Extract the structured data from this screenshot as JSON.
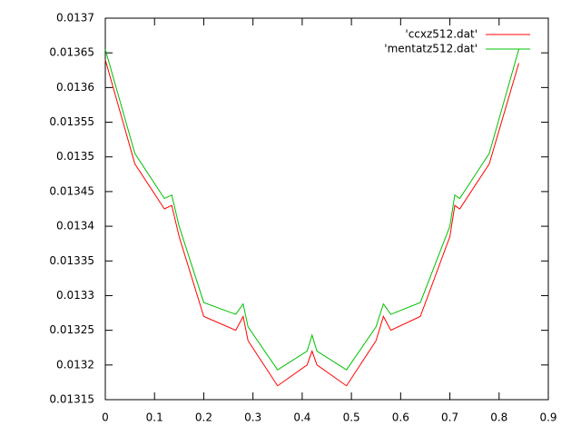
{
  "chart_data": {
    "type": "line",
    "x": [
      0,
      0.06,
      0.12,
      0.135,
      0.15,
      0.2,
      0.265,
      0.28,
      0.29,
      0.35,
      0.41,
      0.42,
      0.43,
      0.49,
      0.55,
      0.565,
      0.58,
      0.64,
      0.7,
      0.71,
      0.72,
      0.78,
      0.84
    ],
    "series": [
      {
        "name": "'ccxz512.dat'",
        "color": "#ff0000",
        "values": [
          0.01364,
          0.01349,
          0.013425,
          0.01343,
          0.013385,
          0.01327,
          0.01325,
          0.01327,
          0.013235,
          0.01317,
          0.0132,
          0.01322,
          0.0132,
          0.01317,
          0.013235,
          0.01327,
          0.01325,
          0.01327,
          0.013385,
          0.01343,
          0.013425,
          0.01349,
          0.013635
        ]
      },
      {
        "name": "'mentatz512.dat'",
        "color": "#00c000",
        "values": [
          0.013655,
          0.013505,
          0.01344,
          0.013445,
          0.0134,
          0.01329,
          0.013273,
          0.013288,
          0.013255,
          0.013193,
          0.01322,
          0.013243,
          0.01322,
          0.013193,
          0.013255,
          0.013288,
          0.013273,
          0.01329,
          0.0134,
          0.013445,
          0.01344,
          0.013505,
          0.013655
        ]
      }
    ],
    "xlim": [
      0,
      0.9
    ],
    "xticks": [
      0,
      0.1,
      0.2,
      0.3,
      0.4,
      0.5,
      0.6,
      0.7,
      0.8,
      0.9
    ],
    "ylim": [
      0.01315,
      0.0137
    ],
    "yticks": [
      0.01315,
      0.0132,
      0.01325,
      0.0133,
      0.01335,
      0.0134,
      0.01345,
      0.0135,
      0.01355,
      0.0136,
      0.01365,
      0.0137
    ],
    "grid": false,
    "legend": "top-right"
  }
}
